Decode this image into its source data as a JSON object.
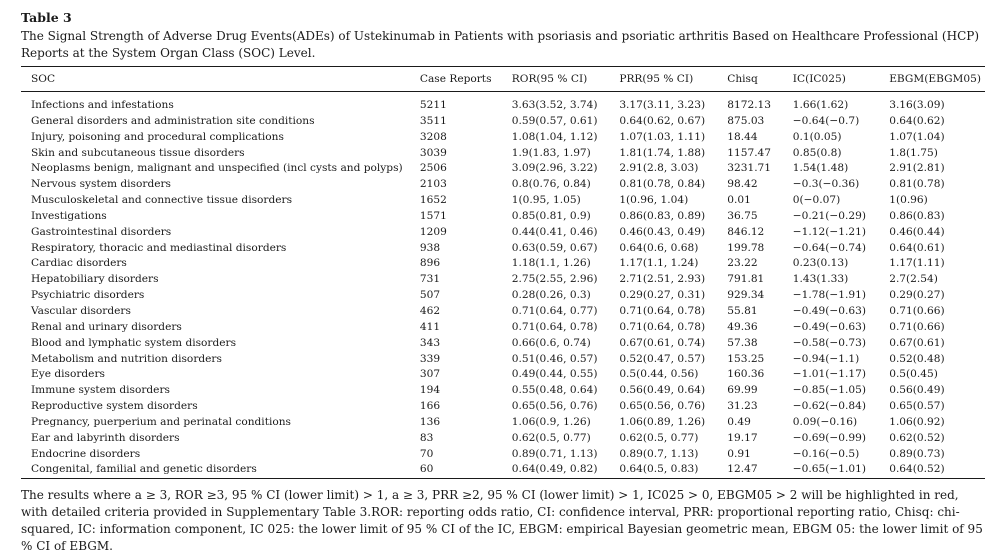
{
  "table_label": "Table 3",
  "caption": "The Signal Strength of Adverse Drug Events(ADEs) of Ustekinumab in Patients with psoriasis and psoriatic arthritis Based on Healthcare Professional (HCP) Reports at the System Organ Class (SOC) Level.",
  "columns": [
    "SOC",
    "Case Reports",
    "ROR(95 % CI)",
    "PRR(95 % CI)",
    "Chisq",
    "IC(IC025)",
    "EBGM(EBGM05)"
  ],
  "rows": [
    [
      "Infections and infestations",
      "5211",
      "3.63(3.52, 3.74)",
      "3.17(3.11, 3.23)",
      "8172.13",
      "1.66(1.62)",
      "3.16(3.09)"
    ],
    [
      "General disorders and administration site conditions",
      "3511",
      "0.59(0.57, 0.61)",
      "0.64(0.62, 0.67)",
      "875.03",
      "−0.64(−0.7)",
      "0.64(0.62)"
    ],
    [
      "Injury, poisoning and procedural complications",
      "3208",
      "1.08(1.04, 1.12)",
      "1.07(1.03, 1.11)",
      "18.44",
      "0.1(0.05)",
      "1.07(1.04)"
    ],
    [
      "Skin and subcutaneous tissue disorders",
      "3039",
      "1.9(1.83, 1.97)",
      "1.81(1.74, 1.88)",
      "1157.47",
      "0.85(0.8)",
      "1.8(1.75)"
    ],
    [
      "Neoplasms benign, malignant and unspecified (incl cysts and polyps)",
      "2506",
      "3.09(2.96, 3.22)",
      "2.91(2.8, 3.03)",
      "3231.71",
      "1.54(1.48)",
      "2.91(2.81)"
    ],
    [
      "Nervous system disorders",
      "2103",
      "0.8(0.76, 0.84)",
      "0.81(0.78, 0.84)",
      "98.42",
      "−0.3(−0.36)",
      "0.81(0.78)"
    ],
    [
      "Musculoskeletal and connective tissue disorders",
      "1652",
      "1(0.95, 1.05)",
      "1(0.96, 1.04)",
      "0.01",
      "0(−0.07)",
      "1(0.96)"
    ],
    [
      "Investigations",
      "1571",
      "0.85(0.81, 0.9)",
      "0.86(0.83, 0.89)",
      "36.75",
      "−0.21(−0.29)",
      "0.86(0.83)"
    ],
    [
      "Gastrointestinal disorders",
      "1209",
      "0.44(0.41, 0.46)",
      "0.46(0.43, 0.49)",
      "846.12",
      "−1.12(−1.21)",
      "0.46(0.44)"
    ],
    [
      "Respiratory, thoracic and mediastinal disorders",
      "938",
      "0.63(0.59, 0.67)",
      "0.64(0.6, 0.68)",
      "199.78",
      "−0.64(−0.74)",
      "0.64(0.61)"
    ],
    [
      "Cardiac disorders",
      "896",
      "1.18(1.1, 1.26)",
      "1.17(1.1, 1.24)",
      "23.22",
      "0.23(0.13)",
      "1.17(1.11)"
    ],
    [
      "Hepatobiliary disorders",
      "731",
      "2.75(2.55, 2.96)",
      "2.71(2.51, 2.93)",
      "791.81",
      "1.43(1.33)",
      "2.7(2.54)"
    ],
    [
      "Psychiatric disorders",
      "507",
      "0.28(0.26, 0.3)",
      "0.29(0.27, 0.31)",
      "929.34",
      "−1.78(−1.91)",
      "0.29(0.27)"
    ],
    [
      "Vascular disorders",
      "462",
      "0.71(0.64, 0.77)",
      "0.71(0.64, 0.78)",
      "55.81",
      "−0.49(−0.63)",
      "0.71(0.66)"
    ],
    [
      "Renal and urinary disorders",
      "411",
      "0.71(0.64, 0.78)",
      "0.71(0.64, 0.78)",
      "49.36",
      "−0.49(−0.63)",
      "0.71(0.66)"
    ],
    [
      "Blood and lymphatic system disorders",
      "343",
      "0.66(0.6, 0.74)",
      "0.67(0.61, 0.74)",
      "57.38",
      "−0.58(−0.73)",
      "0.67(0.61)"
    ],
    [
      "Metabolism and nutrition disorders",
      "339",
      "0.51(0.46, 0.57)",
      "0.52(0.47, 0.57)",
      "153.25",
      "−0.94(−1.1)",
      "0.52(0.48)"
    ],
    [
      "Eye disorders",
      "307",
      "0.49(0.44, 0.55)",
      "0.5(0.44, 0.56)",
      "160.36",
      "−1.01(−1.17)",
      "0.5(0.45)"
    ],
    [
      "Immune system disorders",
      "194",
      "0.55(0.48, 0.64)",
      "0.56(0.49, 0.64)",
      "69.99",
      "−0.85(−1.05)",
      "0.56(0.49)"
    ],
    [
      "Reproductive system disorders",
      "166",
      "0.65(0.56, 0.76)",
      "0.65(0.56, 0.76)",
      "31.23",
      "−0.62(−0.84)",
      "0.65(0.57)"
    ],
    [
      "Pregnancy, puerperium and perinatal conditions",
      "136",
      "1.06(0.9, 1.26)",
      "1.06(0.89, 1.26)",
      "0.49",
      "0.09(−0.16)",
      "1.06(0.92)"
    ],
    [
      "Ear and labyrinth disorders",
      "83",
      "0.62(0.5, 0.77)",
      "0.62(0.5, 0.77)",
      "19.17",
      "−0.69(−0.99)",
      "0.62(0.52)"
    ],
    [
      "Endocrine disorders",
      "70",
      "0.89(0.71, 1.13)",
      "0.89(0.7, 1.13)",
      "0.91",
      "−0.16(−0.5)",
      "0.89(0.73)"
    ],
    [
      "Congenital, familial and genetic disorders",
      "60",
      "0.64(0.49, 0.82)",
      "0.64(0.5, 0.83)",
      "12.47",
      "−0.65(−1.01)",
      "0.64(0.52)"
    ]
  ],
  "footnote": "The results where a ≥ 3, ROR ≥3, 95 % CI (lower limit) > 1, a ≥ 3, PRR ≥2, 95 % CI (lower limit) > 1, IC025 > 0, EBGM05 > 2 will be highlighted in red, with detailed criteria provided in Supplementary Table 3.ROR: reporting odds ratio, CI: confidence interval, PRR: proportional reporting ratio, Chisq: chi-squared, IC: information component, IC 025: the lower limit of 95 % CI of the IC, EBGM: empirical Bayesian geometric mean, EBGM 05: the lower limit of 95 % CI of EBGM."
}
